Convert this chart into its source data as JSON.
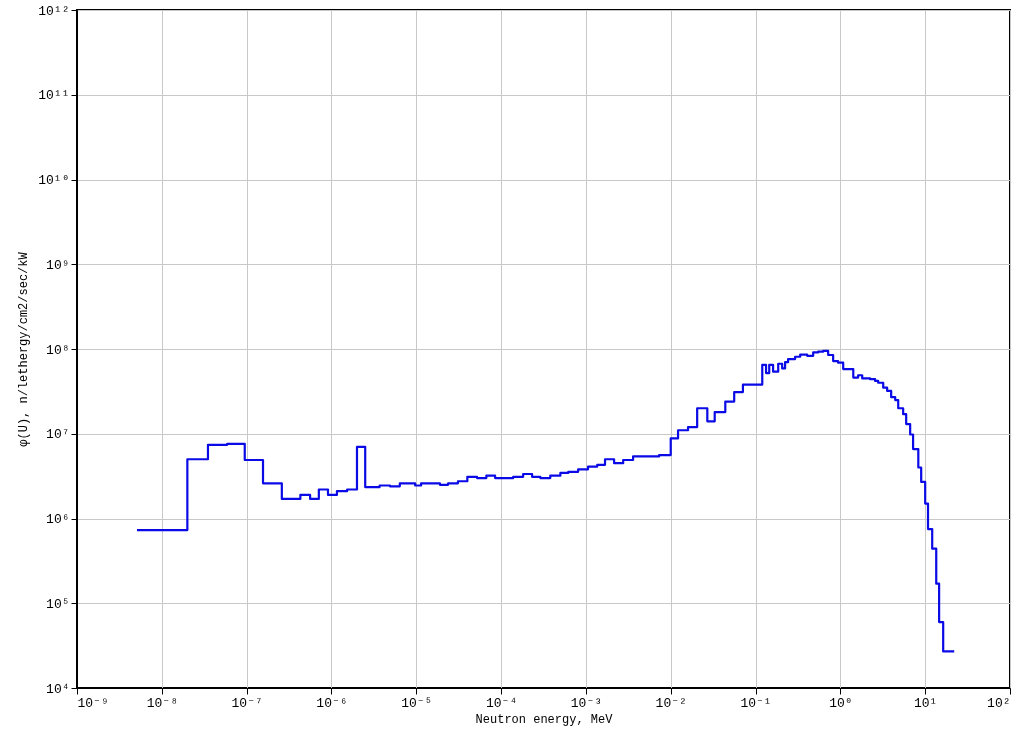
{
  "chart_data": {
    "type": "step",
    "xlabel": "Neutron energy, MeV",
    "ylabel": "φ(U), n/lethergy/cm2/sec/kW",
    "log": "xy",
    "grid": true,
    "xlim": [
      1e-09,
      100
    ],
    "ylim": [
      10000,
      1000000000000.0
    ],
    "xticks": [
      {
        "value": 1e-09,
        "label": "10⁻⁹"
      },
      {
        "value": 1e-08,
        "label": "10⁻⁸"
      },
      {
        "value": 1e-07,
        "label": "10⁻⁷"
      },
      {
        "value": 1e-06,
        "label": "10⁻⁶"
      },
      {
        "value": 1e-05,
        "label": "10⁻⁵"
      },
      {
        "value": 0.0001,
        "label": "10⁻⁴"
      },
      {
        "value": 0.001,
        "label": "10⁻³"
      },
      {
        "value": 0.01,
        "label": "10⁻²"
      },
      {
        "value": 0.1,
        "label": "10⁻¹"
      },
      {
        "value": 1,
        "label": "10⁰"
      },
      {
        "value": 10,
        "label": "10¹"
      },
      {
        "value": 100,
        "label": "10²"
      }
    ],
    "yticks": [
      {
        "value": 10000,
        "label": "10⁴"
      },
      {
        "value": 100000,
        "label": "10⁵"
      },
      {
        "value": 1000000,
        "label": "10⁶"
      },
      {
        "value": 10000000,
        "label": "10⁷"
      },
      {
        "value": 100000000,
        "label": "10⁸"
      },
      {
        "value": 1000000000,
        "label": "10⁹"
      },
      {
        "value": 10000000000,
        "label": "10¹⁰"
      },
      {
        "value": 100000000000,
        "label": "10¹¹"
      },
      {
        "value": 1000000000000,
        "label": "10¹²"
      }
    ],
    "series": [
      {
        "color": "#0a0ae6",
        "x": [
          5.1e-09,
          2e-08,
          3.5e-08,
          5.9e-08,
          9.5e-08,
          1.56e-07,
          2.6e-07,
          4.3e-07,
          5.6e-07,
          7.1e-07,
          9.1e-07,
          1.16e-06,
          1.53e-06,
          2e-06,
          2.5e-06,
          3.7e-06,
          4.9e-06,
          6.4e-06,
          9.7e-06,
          1.14e-05,
          1.9e-05,
          2.37e-05,
          3.1e-05,
          4e-05,
          5.2e-05,
          6.7e-05,
          8.5e-05,
          0.000139,
          0.000182,
          0.000232,
          0.00029,
          0.00038,
          0.0005,
          0.00062,
          0.00081,
          0.00106,
          0.00136,
          0.00168,
          0.00215,
          0.00275,
          0.0036,
          0.0073,
          0.01,
          0.0122,
          0.016,
          0.0205,
          0.027,
          0.033,
          0.044,
          0.056,
          0.071,
          0.12,
          0.133,
          0.145,
          0.161,
          0.185,
          0.206,
          0.223,
          0.242,
          0.293,
          0.336,
          0.406,
          0.478,
          0.547,
          0.627,
          0.718,
          0.822,
          0.94,
          1.08,
          1.42,
          1.62,
          1.81,
          2.24,
          2.57,
          2.79,
          3.2,
          3.56,
          3.97,
          4.43,
          4.81,
          5.5,
          5.97,
          6.65,
          7.2,
          8.3,
          8.97,
          10,
          10.8,
          12.1,
          13.5,
          14.6,
          16.3,
          22
        ],
        "values": [
          730000.0,
          5000000.0,
          7400000.0,
          7600000.0,
          4900000.0,
          2600000.0,
          1700000.0,
          1900000.0,
          1700000.0,
          2200000.0,
          1900000.0,
          2100000.0,
          2200000.0,
          7000000.0,
          2350000.0,
          2450000.0,
          2400000.0,
          2600000.0,
          2450000.0,
          2600000.0,
          2500000.0,
          2600000.0,
          2750000.0,
          3100000.0,
          3000000.0,
          3200000.0,
          3000000.0,
          3100000.0,
          3350000.0,
          3100000.0,
          3000000.0,
          3200000.0,
          3450000.0,
          3550000.0,
          3800000.0,
          4100000.0,
          4300000.0,
          5000000.0,
          4500000.0,
          4900000.0,
          5400000.0,
          5600000.0,
          8800000.0,
          11000000.0,
          12000000.0,
          20000000.0,
          14000000.0,
          18000000.0,
          24000000.0,
          31000000.0,
          38000000.0,
          65000000.0,
          52000000.0,
          65000000.0,
          54000000.0,
          67000000.0,
          59000000.0,
          70000000.0,
          76000000.0,
          81000000.0,
          86000000.0,
          83000000.0,
          91000000.0,
          93000000.0,
          95000000.0,
          85000000.0,
          72000000.0,
          69000000.0,
          58000000.0,
          46000000.0,
          49000000.0,
          45000000.0,
          44000000.0,
          42000000.0,
          40000000.0,
          35000000.0,
          32000000.0,
          27000000.0,
          25000000.0,
          20000000.0,
          17000000.0,
          13000000.0,
          9800000.0,
          6600000.0,
          4000000.0,
          2700000.0,
          1500000.0,
          750000.0,
          440000.0,
          170000.0,
          60000.0,
          27000.0,
          27000.0
        ]
      }
    ]
  }
}
